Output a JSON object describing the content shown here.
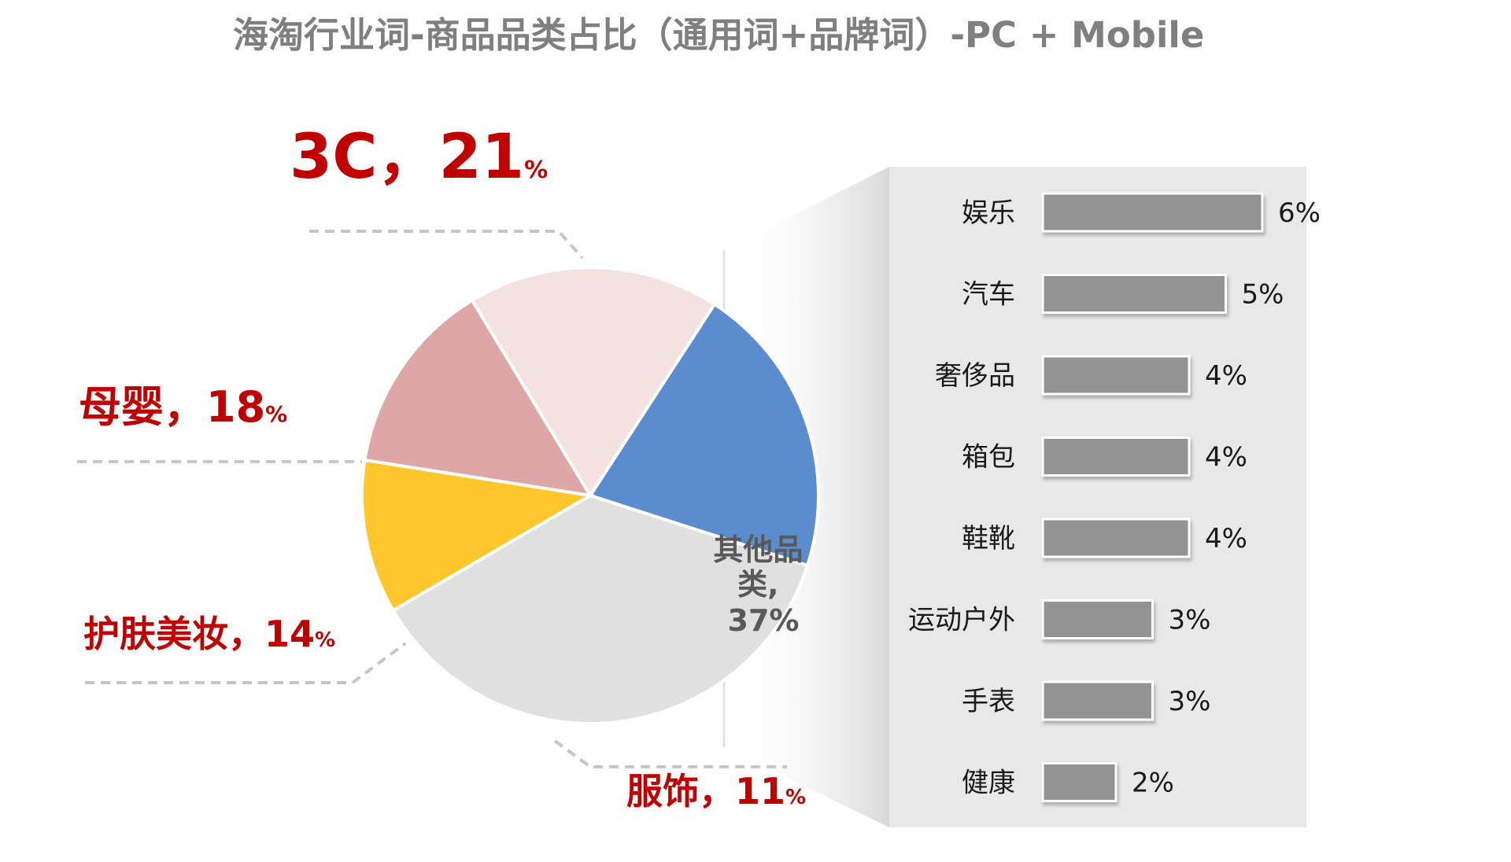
{
  "chart_data": [
    {
      "type": "pie",
      "title": "海淘行业词-商品品类占比（通用词+品牌词）-PC + Mobile",
      "slices": [
        {
          "name": "3C",
          "label_main": "3C，21",
          "value": 21,
          "color": "#5b8ccf"
        },
        {
          "name": "其他品类",
          "label_lines": [
            "其他品",
            "类,",
            "37%"
          ],
          "value": 37,
          "color": "#e0e0e0"
        },
        {
          "name": "服饰",
          "label_main": "服饰，11",
          "value": 11,
          "color": "#ffc72c"
        },
        {
          "name": "护肤美妆",
          "label_main": "护肤美妆，14",
          "value": 14,
          "color": "#dea7a5"
        },
        {
          "name": "母婴",
          "label_main": "母婴，18",
          "value": 18,
          "color": "#f4e2e1"
        }
      ],
      "percent_suffix": "%"
    },
    {
      "type": "bar",
      "orientation": "horizontal",
      "categories": [
        "娱乐",
        "汽车",
        "奢侈品",
        "箱包",
        "鞋靴",
        "运动户外",
        "手表",
        "健康"
      ],
      "values": [
        6,
        5,
        4,
        4,
        4,
        3,
        3,
        2
      ],
      "value_labels": [
        "6%",
        "5%",
        "4%",
        "4%",
        "4%",
        "3%",
        "3%",
        "2%"
      ],
      "bar_color": "#939393",
      "panel_color": "#e8e8e8"
    }
  ]
}
